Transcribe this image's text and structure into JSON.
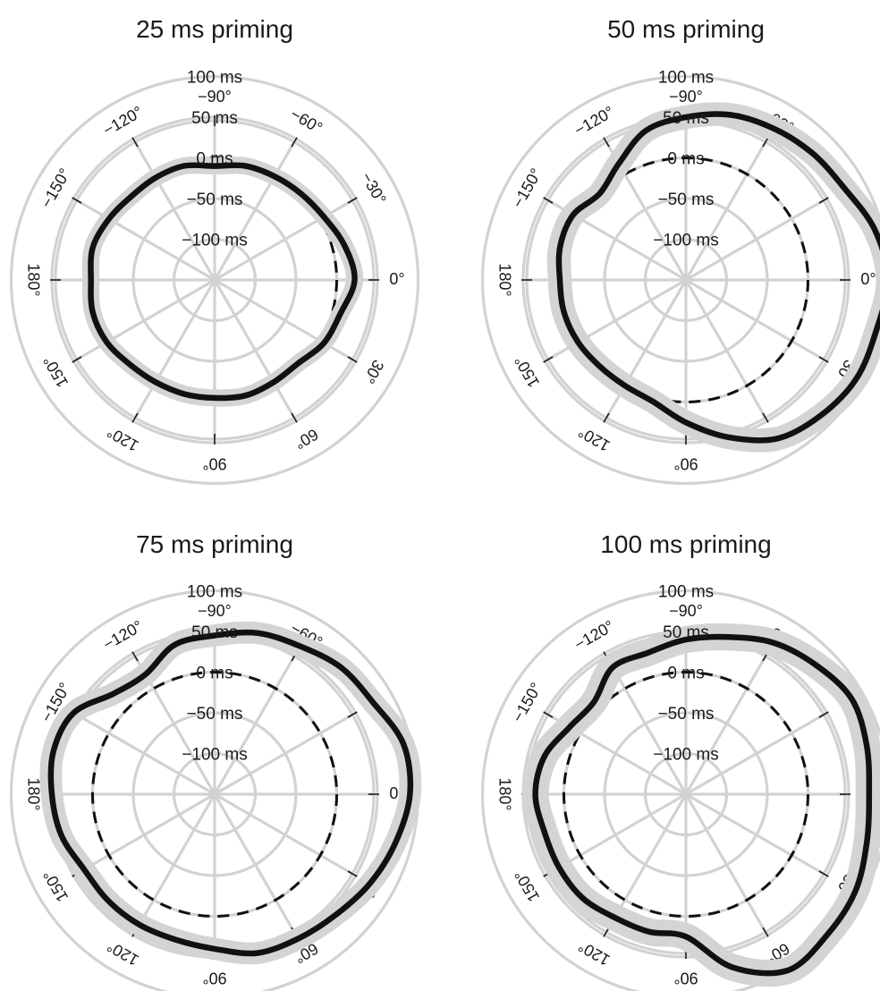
{
  "chart_data": [
    {
      "type": "polar-line",
      "title": "25 ms priming",
      "radial_ticks": [
        "100 ms",
        "50 ms",
        "0 ms",
        "−50 ms",
        "−100 ms"
      ],
      "radial_values": [
        100,
        50,
        0,
        -50,
        -100
      ],
      "rlim": [
        -150,
        100
      ],
      "angle_ticks": [
        "−90°",
        "−60°",
        "−30°",
        "0°",
        "30°",
        "60°",
        "90°",
        "120°",
        "150°",
        "180°",
        "−150°",
        "−120°"
      ],
      "angle_values": [
        -90,
        -60,
        -30,
        0,
        30,
        60,
        90,
        120,
        150,
        180,
        -150,
        -120
      ],
      "reference": {
        "style": "dashed",
        "value": 0
      },
      "series": [
        {
          "theta": [
            0,
            15,
            30,
            45,
            60,
            75,
            90,
            105,
            120,
            135,
            150,
            165,
            180,
            -165,
            -150,
            -135,
            -120,
            -105,
            -90,
            -75,
            -60,
            -45,
            -30,
            -15
          ],
          "r": [
            22,
            10,
            5,
            -5,
            -5,
            -3,
            -5,
            -5,
            -5,
            -3,
            3,
            5,
            2,
            5,
            0,
            -5,
            -5,
            -5,
            -10,
            -5,
            -3,
            0,
            5,
            15
          ],
          "band_halfwidth": 7
        }
      ]
    },
    {
      "type": "polar-line",
      "title": "50 ms priming",
      "radial_ticks": [
        "100 ms",
        "50 ms",
        "0 ms",
        "−50 ms",
        "−100 ms"
      ],
      "radial_values": [
        100,
        50,
        0,
        -50,
        -100
      ],
      "rlim": [
        -150,
        100
      ],
      "angle_ticks": [
        "−90°",
        "−60°",
        "−30°",
        "0°",
        "30°",
        "60°",
        "90°",
        "120°",
        "150°",
        "180°",
        "−150°",
        "−120°"
      ],
      "angle_values": [
        -90,
        -60,
        -30,
        0,
        30,
        60,
        90,
        120,
        150,
        180,
        -150,
        -120
      ],
      "reference": {
        "style": "dashed",
        "value": 0
      },
      "series": [
        {
          "theta": [
            0,
            15,
            30,
            45,
            60,
            75,
            90,
            105,
            120,
            135,
            150,
            165,
            180,
            -165,
            -150,
            -135,
            -120,
            -105,
            -90,
            -75,
            -60,
            -45,
            -30,
            -15
          ],
          "r": [
            98,
            92,
            92,
            85,
            75,
            50,
            25,
            5,
            0,
            0,
            3,
            5,
            5,
            10,
            10,
            0,
            15,
            40,
            50,
            60,
            65,
            70,
            75,
            90
          ],
          "band_halfwidth": 11
        }
      ]
    },
    {
      "type": "polar-line",
      "title": "75 ms priming",
      "radial_ticks": [
        "100 ms",
        "50 ms",
        "0 ms",
        "−50 ms",
        "−100 ms"
      ],
      "radial_values": [
        100,
        50,
        0,
        -50,
        -100
      ],
      "rlim": [
        -150,
        100
      ],
      "angle_ticks": [
        "−90°",
        "−60°",
        "−30°",
        "0°",
        "30°",
        "60°",
        "90°",
        "120°",
        "150°",
        "180°",
        "−150°",
        "−120°"
      ],
      "angle_values": [
        -90,
        -60,
        -30,
        0,
        30,
        60,
        90,
        120,
        150,
        180,
        -150,
        -120
      ],
      "reference": {
        "style": "dashed",
        "value": 0
      },
      "series": [
        {
          "theta": [
            0,
            15,
            30,
            45,
            60,
            75,
            90,
            105,
            120,
            135,
            150,
            165,
            180,
            -165,
            -150,
            -135,
            -120,
            -105,
            -90,
            -75,
            -60,
            -45,
            -30,
            -15
          ],
          "r": [
            90,
            80,
            70,
            60,
            55,
            52,
            40,
            35,
            35,
            35,
            35,
            45,
            50,
            55,
            50,
            25,
            20,
            40,
            45,
            55,
            60,
            70,
            75,
            90
          ],
          "band_halfwidth": 10
        }
      ]
    },
    {
      "type": "polar-line",
      "title": "100 ms priming",
      "radial_ticks": [
        "100 ms",
        "50 ms",
        "0 ms",
        "−50 ms",
        "−100 ms"
      ],
      "radial_values": [
        100,
        50,
        0,
        -50,
        -100
      ],
      "rlim": [
        -150,
        100
      ],
      "angle_ticks": [
        "−90°",
        "−60°",
        "−30°",
        "0°",
        "30°",
        "60°",
        "90°",
        "120°",
        "150°",
        "180°",
        "−150°",
        "−120°"
      ],
      "angle_values": [
        -90,
        -60,
        -30,
        0,
        30,
        60,
        90,
        120,
        150,
        180,
        -150,
        -120
      ],
      "reference": {
        "style": "dashed",
        "value": 0
      },
      "series": [
        {
          "theta": [
            0,
            15,
            30,
            45,
            60,
            75,
            90,
            105,
            120,
            135,
            150,
            165,
            180,
            -165,
            -150,
            -135,
            -120,
            -105,
            -90,
            -75,
            -60,
            -45,
            -30,
            -15
          ],
          "r": [
            75,
            80,
            90,
            95,
            100,
            70,
            25,
            25,
            25,
            30,
            30,
            30,
            35,
            30,
            15,
            10,
            30,
            30,
            40,
            50,
            65,
            75,
            85,
            80
          ],
          "band_halfwidth": 13
        }
      ]
    }
  ]
}
